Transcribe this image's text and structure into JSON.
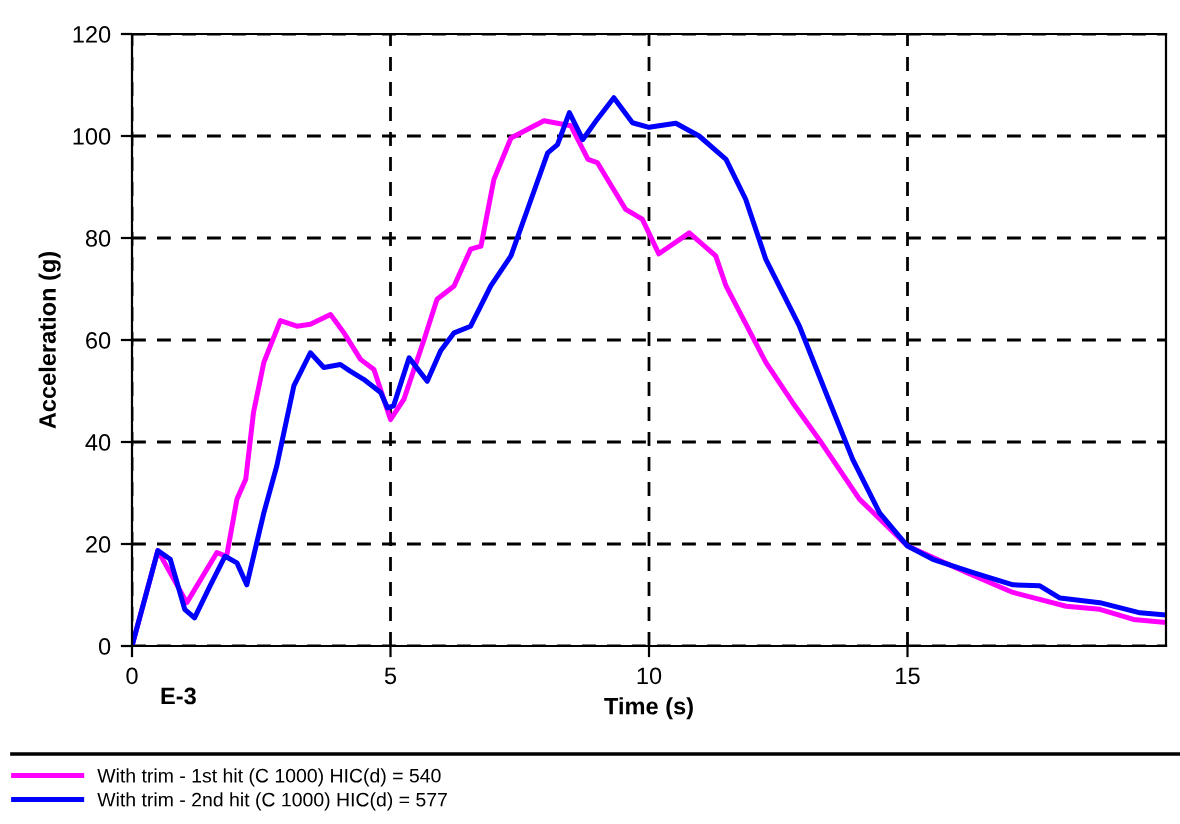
{
  "chart_data": {
    "type": "line",
    "xlabel": "Time (s)",
    "ylabel": "Acceleration (g)",
    "annotations": [
      "E-3"
    ],
    "xlim": [
      0,
      20
    ],
    "xticks": [
      0,
      5,
      10,
      15
    ],
    "ylim": [
      0,
      120
    ],
    "yticks": [
      0,
      20,
      40,
      60,
      80,
      100,
      120
    ],
    "grid": true,
    "legend": "bottom",
    "line_style": "solid",
    "marker": "none",
    "series": [
      {
        "name": "With trim - 1st hit (C 1000) HIC(d) = 540",
        "color": "#ff00ff",
        "x": [
          0,
          0.5,
          1.06,
          1.64,
          1.83,
          2.03,
          2.2,
          2.35,
          2.55,
          2.87,
          3.19,
          3.45,
          3.84,
          4.1,
          4.42,
          4.68,
          5.0,
          5.26,
          5.65,
          5.9,
          6.23,
          6.55,
          6.75,
          7.0,
          7.33,
          7.97,
          8.49,
          8.82,
          9.0,
          9.55,
          9.87,
          10.19,
          10.78,
          11.29,
          11.49,
          12.26,
          12.78,
          13.29,
          14.07,
          15.0,
          16.14,
          17.04,
          18.07,
          18.72,
          19.37,
          20
        ],
        "values": [
          0,
          18.7,
          8.5,
          18.3,
          17.6,
          28.8,
          32.7,
          45.8,
          55.6,
          63.8,
          62.7,
          63.1,
          65,
          61.4,
          56.2,
          54.2,
          44.4,
          48.4,
          60.1,
          68,
          70.6,
          77.8,
          78.4,
          91.5,
          99.6,
          103,
          102,
          95.4,
          94.8,
          85.6,
          83.7,
          76.9,
          81,
          76.5,
          70.6,
          55.6,
          47.7,
          40.5,
          28.8,
          19.6,
          14.4,
          10.5,
          7.8,
          7.2,
          5.2,
          4.6
        ]
      },
      {
        "name": "With trim - 2nd hit (C 1000) HIC(d) = 577",
        "color": "#0000ff",
        "x": [
          0,
          0.5,
          0.74,
          1.02,
          1.21,
          1.51,
          1.8,
          2.03,
          2.22,
          2.55,
          2.8,
          3.13,
          3.45,
          3.71,
          4.03,
          4.22,
          4.48,
          4.81,
          4.94,
          5.06,
          5.36,
          5.71,
          5.97,
          6.23,
          6.55,
          6.94,
          7.33,
          7.72,
          8.04,
          8.23,
          8.46,
          8.72,
          9.0,
          9.32,
          9.68,
          10.0,
          10.52,
          10.97,
          11.49,
          11.87,
          12.26,
          12.91,
          13.42,
          13.94,
          14.46,
          15.0,
          15.49,
          16.27,
          17.04,
          17.56,
          17.95,
          18.72,
          19.5,
          20
        ],
        "values": [
          0,
          18.7,
          17,
          7.2,
          5.5,
          11.8,
          17.6,
          16.3,
          12,
          26.1,
          35.3,
          51,
          57.5,
          54.6,
          55.2,
          53.9,
          52.3,
          49.7,
          46.7,
          47.1,
          56.5,
          51.9,
          57.9,
          61.4,
          62.7,
          70.6,
          76.5,
          87.6,
          96.7,
          98.3,
          104.6,
          99.3,
          103.3,
          107.5,
          102.6,
          101.7,
          102.5,
          100,
          95.4,
          87.6,
          75.8,
          62.7,
          49.7,
          36.6,
          26.1,
          19.6,
          17,
          14.4,
          12,
          11.8,
          9.4,
          8.5,
          6.5,
          6.1
        ]
      }
    ]
  }
}
